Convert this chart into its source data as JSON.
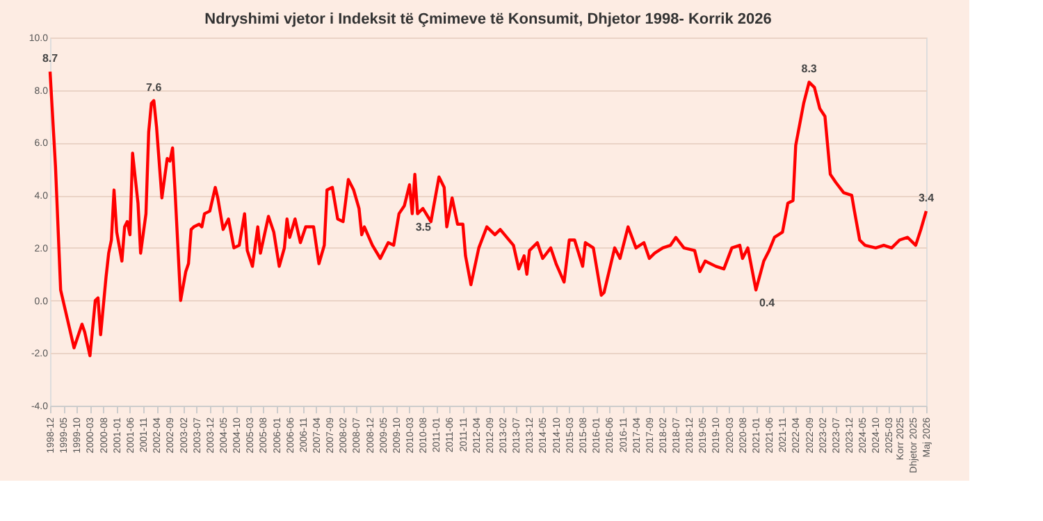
{
  "chart_data": {
    "type": "line",
    "title": "Ndryshimi vjetor i Indeksit të Çmimeve të Konsumit, Dhjetor 1998- Korrik 2026",
    "x": [
      "1998-12",
      "1999-02",
      "1999-04",
      "1999-09",
      "1999-12",
      "2000-01",
      "2000-03",
      "2000-05",
      "2000-06",
      "2000-07",
      "2000-09",
      "2000-10",
      "2000-11",
      "2000-12",
      "2001-01",
      "2001-03",
      "2001-04",
      "2001-05",
      "2001-06",
      "2001-07",
      "2001-09",
      "2001-10",
      "2001-12",
      "2002-01",
      "2002-02",
      "2002-03",
      "2002-04",
      "2002-06",
      "2002-08",
      "2002-09",
      "2002-10",
      "2002-11",
      "2003-01",
      "2003-03",
      "2003-04",
      "2003-05",
      "2003-06",
      "2003-08",
      "2003-09",
      "2003-10",
      "2003-12",
      "2004-02",
      "2004-03",
      "2004-05",
      "2004-07",
      "2004-09",
      "2004-11",
      "2005-01",
      "2005-02",
      "2005-04",
      "2005-06",
      "2005-07",
      "2005-10",
      "2005-12",
      "2006-02",
      "2006-04",
      "2006-05",
      "2006-06",
      "2006-08",
      "2006-10",
      "2006-12",
      "2007-03",
      "2007-05",
      "2007-07",
      "2007-08",
      "2007-10",
      "2007-12",
      "2008-02",
      "2008-04",
      "2008-06",
      "2008-08",
      "2008-09",
      "2008-10",
      "2009-01",
      "2009-04",
      "2009-07",
      "2009-09",
      "2009-11",
      "2010-01",
      "2010-03",
      "2010-04",
      "2010-05",
      "2010-06",
      "2010-08",
      "2010-11",
      "2011-02",
      "2011-04",
      "2011-05",
      "2011-07",
      "2011-09",
      "2011-11",
      "2011-12",
      "2012-02",
      "2012-05",
      "2012-08",
      "2012-11",
      "2013-01",
      "2013-06",
      "2013-08",
      "2013-10",
      "2013-11",
      "2013-12",
      "2014-03",
      "2014-05",
      "2014-08",
      "2014-10",
      "2015-01",
      "2015-03",
      "2015-05",
      "2015-08",
      "2015-09",
      "2015-12",
      "2016-03",
      "2016-04",
      "2016-08",
      "2016-10",
      "2017-01",
      "2017-04",
      "2017-07",
      "2017-09",
      "2017-11",
      "2018-02",
      "2018-05",
      "2018-07",
      "2018-10",
      "2019-02",
      "2019-04",
      "2019-06",
      "2019-10",
      "2020-01",
      "2020-04",
      "2020-07",
      "2020-08",
      "2020-10",
      "2021-01",
      "2021-04",
      "2021-06",
      "2021-08",
      "2021-11",
      "2022-01",
      "2022-03",
      "2022-04",
      "2022-07",
      "2022-09",
      "2022-11",
      "2023-01",
      "2023-03",
      "2023-05",
      "2023-07",
      "2023-10",
      "2024-01",
      "2024-02",
      "2024-04",
      "2024-06",
      "2024-10",
      "2025-01",
      "2025-04",
      "2025-07",
      "2025-10",
      "2026-01",
      "2026-03",
      "2026-05"
    ],
    "series": [
      {
        "color": "#ff0000",
        "values": [
          8.7,
          5.1,
          0.4,
          -1.8,
          -0.9,
          -1.2,
          -2.1,
          0.0,
          0.1,
          -1.3,
          0.9,
          1.8,
          2.3,
          4.2,
          2.6,
          1.5,
          2.8,
          3.0,
          2.5,
          5.6,
          3.7,
          1.8,
          3.3,
          6.4,
          7.5,
          7.6,
          6.6,
          3.9,
          5.4,
          5.3,
          5.8,
          4.0,
          0.0,
          1.1,
          1.4,
          2.7,
          2.8,
          2.9,
          2.8,
          3.3,
          3.4,
          4.3,
          3.9,
          2.7,
          3.1,
          2.0,
          2.1,
          3.3,
          1.9,
          1.3,
          2.8,
          1.8,
          3.2,
          2.6,
          1.3,
          2.0,
          3.1,
          2.4,
          3.1,
          2.2,
          2.8,
          2.8,
          1.4,
          2.1,
          4.2,
          4.3,
          3.1,
          3.0,
          4.6,
          4.2,
          3.5,
          2.5,
          2.8,
          2.1,
          1.6,
          2.2,
          2.1,
          3.3,
          3.6,
          4.4,
          3.3,
          4.8,
          3.3,
          3.5,
          3.0,
          4.7,
          4.3,
          2.8,
          3.9,
          2.9,
          2.9,
          1.7,
          0.6,
          2.0,
          2.8,
          2.5,
          2.7,
          2.1,
          1.2,
          1.7,
          1.0,
          1.9,
          2.2,
          1.6,
          2.0,
          1.4,
          0.7,
          2.3,
          2.3,
          1.3,
          2.2,
          2.0,
          0.2,
          0.3,
          2.0,
          1.6,
          2.8,
          2.0,
          2.2,
          1.6,
          1.8,
          2.0,
          2.1,
          2.4,
          2.0,
          1.9,
          1.1,
          1.5,
          1.3,
          1.2,
          2.0,
          2.1,
          1.6,
          2.0,
          0.4,
          1.5,
          1.9,
          2.4,
          2.6,
          3.7,
          3.8,
          5.9,
          7.5,
          8.3,
          8.1,
          7.3,
          7.0,
          4.8,
          4.5,
          4.1,
          4.0,
          3.4,
          2.3,
          2.1,
          2.0,
          2.1,
          2.0,
          2.3,
          2.4,
          2.1,
          2.7,
          3.4
        ]
      }
    ],
    "xlim": [
      "1998-12",
      "2026-05"
    ],
    "xticks": [
      "1998-12",
      "1999-05",
      "1999-10",
      "2000-03",
      "2000-08",
      "2001-01",
      "2001-06",
      "2001-11",
      "2002-04",
      "2002-09",
      "2003-02",
      "2003-07",
      "2003-12",
      "2004-05",
      "2004-10",
      "2005-03",
      "2005-08",
      "2006-01",
      "2006-06",
      "2006-11",
      "2007-04",
      "2007-09",
      "2008-02",
      "2008-07",
      "2008-12",
      "2009-05",
      "2009-10",
      "2010-03",
      "2010-08",
      "2011-01",
      "2011-06",
      "2011-11",
      "2012-04",
      "2012-09",
      "2013-02",
      "2013-07",
      "2013-12",
      "2014-05",
      "2014-10",
      "2015-03",
      "2015-08",
      "2016-01",
      "2016-06",
      "2016-11",
      "2017-04",
      "2017-09",
      "2018-02",
      "2018-07",
      "2018-12",
      "2019-05",
      "2019-10",
      "2020-03",
      "2020-08",
      "2021-01",
      "2021-06",
      "2021-11",
      "2022-04",
      "2022-09",
      "2023-02",
      "2023-07",
      "2023-12",
      "2024-05",
      "2024-10",
      "2025-03",
      {
        "value": "2025-07",
        "label": "Korr 2025"
      },
      {
        "value": "2025-12",
        "label": "Dhjetor 2025"
      },
      {
        "value": "2026-05",
        "label": "Maj 2026"
      }
    ],
    "ylim": [
      -4,
      10
    ],
    "yticks": [
      {
        "value": -4,
        "label": "-4.0"
      },
      {
        "value": -2,
        "label": "-2.0"
      },
      {
        "value": 0,
        "label": "0.0"
      },
      {
        "value": 2,
        "label": "2.0"
      },
      {
        "value": 4,
        "label": "4.0"
      },
      {
        "value": 6,
        "label": "6.0"
      },
      {
        "value": 8,
        "label": "8.0"
      },
      {
        "value": 10,
        "label": "10.0"
      }
    ],
    "grid": "y",
    "legend": false,
    "marker": "none",
    "line_style": "solid",
    "annotations": [
      {
        "text": "8.7",
        "x": "1998-12",
        "y": 8.7
      },
      {
        "text": "7.6",
        "x": "2002-03",
        "y": 7.6
      },
      {
        "text": "3.5",
        "x": "2010-04",
        "y": 3.3
      },
      {
        "text": "0.4",
        "x": "2021-01",
        "y": 0.4
      },
      {
        "text": "8.3",
        "x": "2022-09",
        "y": 8.3
      },
      {
        "text": "3.4",
        "x": "2026-05",
        "y": 3.4
      }
    ]
  }
}
